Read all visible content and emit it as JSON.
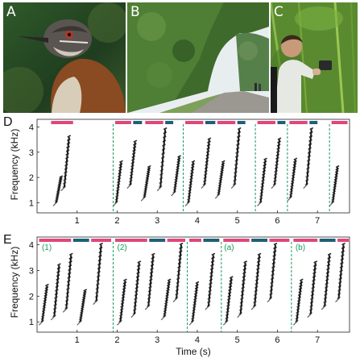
{
  "panels": {
    "A": {
      "label": "A"
    },
    "B": {
      "label": "B"
    },
    "C": {
      "label": "C"
    },
    "D": {
      "label": "D"
    },
    "E": {
      "label": "E"
    }
  },
  "axes": {
    "ylabel": "Frequency (kHz)",
    "xlabel": "Time (s)",
    "yticks": [
      "1",
      "2",
      "3",
      "4"
    ],
    "xticks": [
      "1",
      "2",
      "3",
      "4",
      "5",
      "6",
      "7"
    ]
  },
  "colors": {
    "phrase_male": "#e0467a",
    "phrase_female": "#1f5f7a",
    "boundary": "#1a9a5a",
    "spectrogram": "#1a1a1a"
  },
  "chart_data": [
    {
      "type": "spectrogram",
      "panel": "D",
      "ylabel": "Frequency (kHz)",
      "xlim": [
        0,
        7.8
      ],
      "ylim": [
        0.6,
        4.3
      ],
      "boundaries_s": [
        1.9,
        3.65,
        5.45,
        6.25,
        7.3
      ],
      "phrase_bars": [
        {
          "start": 0.35,
          "end": 0.9,
          "color": "phrase_male"
        },
        {
          "start": 1.95,
          "end": 2.35,
          "color": "phrase_male"
        },
        {
          "start": 2.4,
          "end": 2.62,
          "color": "phrase_female"
        },
        {
          "start": 2.7,
          "end": 3.15,
          "color": "phrase_male"
        },
        {
          "start": 3.2,
          "end": 3.4,
          "color": "phrase_female"
        },
        {
          "start": 3.7,
          "end": 4.15,
          "color": "phrase_male"
        },
        {
          "start": 4.2,
          "end": 4.45,
          "color": "phrase_female"
        },
        {
          "start": 4.5,
          "end": 4.95,
          "color": "phrase_male"
        },
        {
          "start": 5.0,
          "end": 5.2,
          "color": "phrase_female"
        },
        {
          "start": 5.5,
          "end": 5.95,
          "color": "phrase_male"
        },
        {
          "start": 6.0,
          "end": 6.2,
          "color": "phrase_female"
        },
        {
          "start": 6.3,
          "end": 6.75,
          "color": "phrase_male"
        },
        {
          "start": 6.8,
          "end": 7.0,
          "color": "phrase_female"
        },
        {
          "start": 7.35,
          "end": 7.75,
          "color": "phrase_male"
        }
      ],
      "notes": [
        {
          "t": 0.6,
          "f_low": 1.0,
          "f_high": 2.0
        },
        {
          "t": 0.8,
          "f_low": 1.6,
          "f_high": 3.6
        },
        {
          "t": 2.1,
          "f_low": 1.0,
          "f_high": 2.6
        },
        {
          "t": 2.45,
          "f_low": 1.7,
          "f_high": 3.4
        },
        {
          "t": 2.8,
          "f_low": 1.2,
          "f_high": 2.4
        },
        {
          "t": 3.2,
          "f_low": 1.6,
          "f_high": 3.9
        },
        {
          "t": 3.55,
          "f_low": 1.4,
          "f_high": 2.8
        },
        {
          "t": 3.9,
          "f_low": 1.0,
          "f_high": 2.6
        },
        {
          "t": 4.3,
          "f_low": 1.7,
          "f_high": 3.5
        },
        {
          "t": 4.65,
          "f_low": 1.3,
          "f_high": 2.6
        },
        {
          "t": 5.05,
          "f_low": 1.7,
          "f_high": 3.9
        },
        {
          "t": 5.7,
          "f_low": 1.0,
          "f_high": 2.7
        },
        {
          "t": 6.05,
          "f_low": 1.7,
          "f_high": 3.5
        },
        {
          "t": 6.45,
          "f_low": 1.2,
          "f_high": 2.7
        },
        {
          "t": 6.85,
          "f_low": 1.7,
          "f_high": 3.9
        },
        {
          "t": 7.5,
          "f_low": 1.0,
          "f_high": 2.4
        }
      ]
    },
    {
      "type": "spectrogram",
      "panel": "E",
      "xlabel": "Time (s)",
      "ylabel": "Frequency (kHz)",
      "xlim": [
        0,
        7.8
      ],
      "ylim": [
        0.6,
        4.3
      ],
      "boundaries_s": [
        1.9,
        3.75,
        4.6,
        6.35
      ],
      "segment_labels": [
        {
          "t": 0.12,
          "text": "(1)"
        },
        {
          "t": 2.0,
          "text": "(2)"
        },
        {
          "t": 4.67,
          "text": "(a)"
        },
        {
          "t": 6.45,
          "text": "(b)"
        }
      ],
      "phrase_bars": [
        {
          "start": 0.05,
          "end": 0.85,
          "color": "phrase_male"
        },
        {
          "start": 0.9,
          "end": 1.3,
          "color": "phrase_female"
        },
        {
          "start": 1.35,
          "end": 1.85,
          "color": "phrase_male"
        },
        {
          "start": 1.95,
          "end": 2.75,
          "color": "phrase_male"
        },
        {
          "start": 2.8,
          "end": 3.2,
          "color": "phrase_female"
        },
        {
          "start": 3.25,
          "end": 3.7,
          "color": "phrase_male"
        },
        {
          "start": 3.8,
          "end": 4.1,
          "color": "phrase_male"
        },
        {
          "start": 4.15,
          "end": 4.55,
          "color": "phrase_female"
        },
        {
          "start": 4.65,
          "end": 5.3,
          "color": "phrase_male"
        },
        {
          "start": 5.35,
          "end": 5.75,
          "color": "phrase_female"
        },
        {
          "start": 5.8,
          "end": 6.3,
          "color": "phrase_male"
        },
        {
          "start": 6.4,
          "end": 7.0,
          "color": "phrase_male"
        },
        {
          "start": 7.05,
          "end": 7.45,
          "color": "phrase_female"
        },
        {
          "start": 7.5,
          "end": 7.78,
          "color": "phrase_male"
        }
      ],
      "notes": [
        {
          "t": 0.25,
          "f_low": 1.0,
          "f_high": 2.4
        },
        {
          "t": 0.55,
          "f_low": 1.2,
          "f_high": 3.2
        },
        {
          "t": 0.85,
          "f_low": 1.5,
          "f_high": 3.6
        },
        {
          "t": 1.2,
          "f_low": 1.0,
          "f_high": 2.2
        },
        {
          "t": 1.6,
          "f_low": 1.8,
          "f_high": 4.0
        },
        {
          "t": 2.2,
          "f_low": 1.0,
          "f_high": 2.6
        },
        {
          "t": 2.55,
          "f_low": 1.3,
          "f_high": 3.3
        },
        {
          "t": 2.9,
          "f_low": 1.6,
          "f_high": 3.6
        },
        {
          "t": 3.3,
          "f_low": 1.2,
          "f_high": 2.6
        },
        {
          "t": 3.6,
          "f_low": 1.9,
          "f_high": 4.0
        },
        {
          "t": 4.0,
          "f_low": 1.0,
          "f_high": 2.5
        },
        {
          "t": 4.4,
          "f_low": 1.6,
          "f_high": 3.6
        },
        {
          "t": 4.85,
          "f_low": 1.0,
          "f_high": 2.7
        },
        {
          "t": 5.2,
          "f_low": 1.3,
          "f_high": 3.3
        },
        {
          "t": 5.55,
          "f_low": 1.6,
          "f_high": 3.6
        },
        {
          "t": 5.95,
          "f_low": 1.9,
          "f_high": 4.0
        },
        {
          "t": 6.6,
          "f_low": 1.0,
          "f_high": 2.6
        },
        {
          "t": 6.95,
          "f_low": 1.3,
          "f_high": 3.3
        },
        {
          "t": 7.3,
          "f_low": 1.6,
          "f_high": 3.6
        },
        {
          "t": 7.65,
          "f_low": 1.9,
          "f_high": 4.0
        }
      ]
    }
  ]
}
